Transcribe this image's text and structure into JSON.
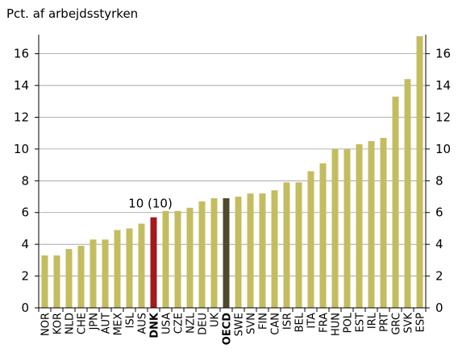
{
  "chart_data": {
    "type": "bar",
    "y_label": "Pct. af arbejdsstyrken",
    "categories": [
      "NOR",
      "KOR",
      "NLD",
      "CHE",
      "JPN",
      "AUT",
      "MEX",
      "ISL",
      "AUS",
      "DNK",
      "USA",
      "CZE",
      "NZL",
      "DEU",
      "UK",
      "OECD",
      "SWE",
      "SVN",
      "FIN",
      "CAN",
      "ISR",
      "BEL",
      "ITA",
      "FRA",
      "HUN",
      "POL",
      "EST",
      "IRL",
      "PRT",
      "GRC",
      "SVK",
      "ESP"
    ],
    "values": [
      3.3,
      3.3,
      3.7,
      3.9,
      4.3,
      4.3,
      4.9,
      5.0,
      5.3,
      5.7,
      6.1,
      6.1,
      6.3,
      6.7,
      6.9,
      6.9,
      7.0,
      7.2,
      7.2,
      7.4,
      7.9,
      7.9,
      8.6,
      9.1,
      10.0,
      10.0,
      10.3,
      10.5,
      10.7,
      13.3,
      14.4,
      17.1
    ],
    "color": "#c4bd60",
    "highlight_colors": {
      "9": "#a3191c",
      "15": "#4f4a2c"
    },
    "bold_indices": [
      9,
      15
    ],
    "annotation": {
      "text": "10 (10)",
      "index": 9
    },
    "ylim": [
      0,
      17.2
    ],
    "yticks": [
      0,
      2,
      4,
      6,
      8,
      10,
      12,
      14,
      16
    ],
    "y2lim": [
      0,
      17.2
    ],
    "y2ticks": [
      0,
      2,
      4,
      6,
      8,
      10,
      12,
      14,
      16
    ],
    "grid": true
  }
}
